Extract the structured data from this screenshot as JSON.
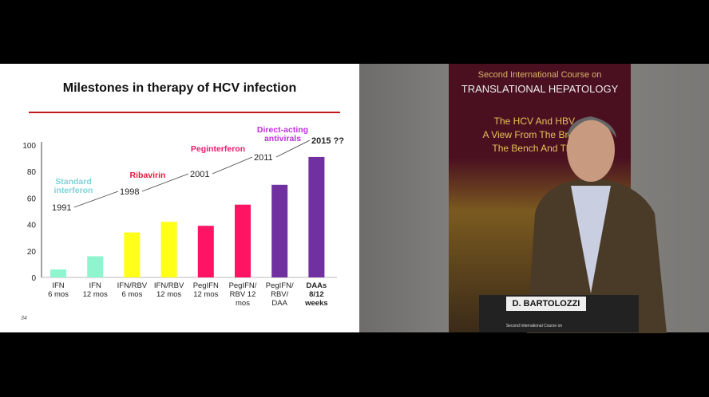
{
  "slide": {
    "title": "Milestones in therapy of HCV infection",
    "page_number": "34",
    "annotations": [
      {
        "label": "Standard\ninterferon",
        "year": "1991",
        "color": "#7fd3d8"
      },
      {
        "label": "Ribavirin",
        "year": "1998",
        "color": "#e8173c"
      },
      {
        "label": "Peginterferon",
        "year": "2001",
        "color": "#f0196e"
      },
      {
        "label": "Direct-acting\nantivirals",
        "year": "2011",
        "color": "#c22ee0"
      },
      {
        "label": "",
        "year": "2015 ??",
        "color": "#111111"
      }
    ]
  },
  "chart_data": {
    "type": "bar",
    "categories": [
      "IFN\n6 mos",
      "IFN\n12 mos",
      "IFN/RBV\n6 mos",
      "IFN/RBV\n12 mos",
      "PegIFN\n12 mos",
      "PegIFN/\nRBV 12\nmos",
      "PegIFN/\nRBV/\nDAA",
      "DAAs\n8/12\nweeks"
    ],
    "values": [
      6,
      16,
      34,
      42,
      39,
      55,
      70,
      91
    ],
    "colors": [
      "#8ef5cf",
      "#8ef5cf",
      "#ffff1a",
      "#ffff1a",
      "#ff1464",
      "#ff1464",
      "#7030a0",
      "#7030a0"
    ],
    "ylim": [
      0,
      100
    ],
    "yticks": [
      0,
      20,
      40,
      60,
      80,
      100
    ],
    "grid": false
  },
  "video": {
    "banner_line1": "Second International Course on",
    "banner_line2": "TRANSLATIONAL HEPATOLOGY",
    "banner_line3": "The HCV And HBV ...",
    "banner_line4": "A View From The Brid... en",
    "banner_line5": "The Bench And The ...",
    "nameplate": "D. BARTOLOZZI",
    "podium_banner": "Second International Course on"
  }
}
